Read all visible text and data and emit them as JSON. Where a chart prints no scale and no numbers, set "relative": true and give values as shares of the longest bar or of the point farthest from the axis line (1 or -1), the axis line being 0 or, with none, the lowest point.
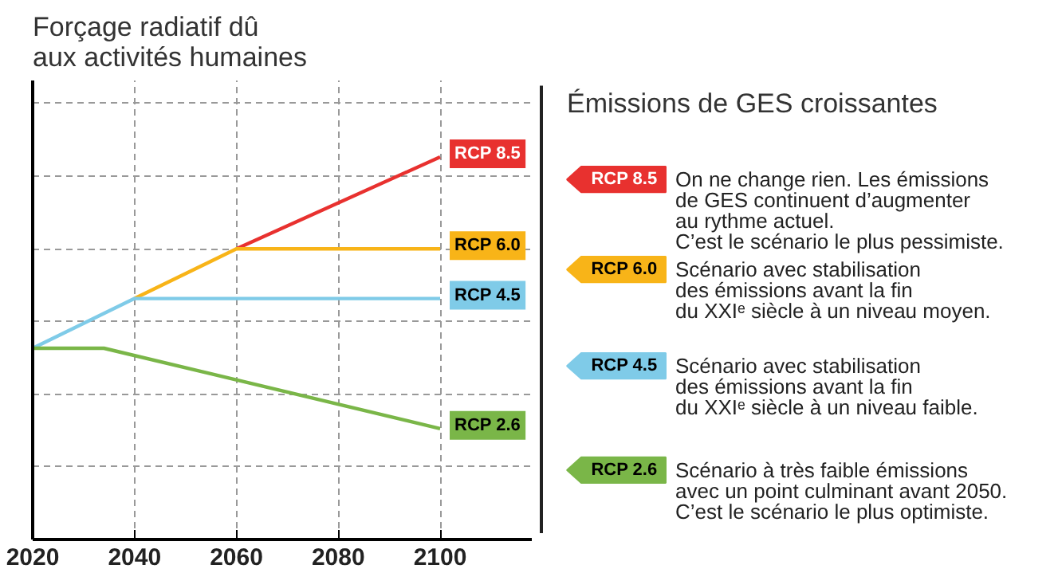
{
  "chart_data": {
    "type": "line",
    "relative": true,
    "title": "Forçage radiatif dû\naux activités humaines",
    "legend_title": "Émissions de GES croissantes",
    "xlim": [
      2020,
      2118
    ],
    "xticks": [
      2020,
      2040,
      2060,
      2080,
      2100
    ],
    "grid": true,
    "legend": "right",
    "marker": "none",
    "line_style": "solid",
    "series": [
      {
        "name": "RCP 8.5",
        "color": "#e8312f",
        "x": [
          2060,
          2100
        ],
        "values": [
          0.76,
          1
        ]
      },
      {
        "name": "RCP 6.0",
        "color": "#f8b418",
        "x": [
          2040,
          2060,
          2100
        ],
        "values": [
          0.63,
          0.76,
          0.76
        ]
      },
      {
        "name": "RCP 4.5",
        "color": "#7fcbe8",
        "x": [
          2020,
          2040,
          2100
        ],
        "values": [
          0.5,
          0.63,
          0.63
        ]
      },
      {
        "name": "RCP 2.6",
        "color": "#7ab648",
        "x": [
          2020,
          2034,
          2100
        ],
        "values": [
          0.5,
          0.5,
          0.29
        ]
      }
    ],
    "annotations": [
      "On ne change rien. Les émissions\nde GES continuent d’augmenter\nau rythme actuel.\nC’est le scénario le plus pessimiste.",
      "Scénario avec stabilisation\ndes émissions avant la fin\ndu XXIᵉ siècle à un niveau moyen.",
      "Scénario avec stabilisation\ndes émissions avant la fin\ndu XXIᵉ siècle à un niveau faible.",
      "Scénario à très faible émissions\navec un point culminant avant 2050.\nC’est le scénario le plus optimiste."
    ]
  }
}
